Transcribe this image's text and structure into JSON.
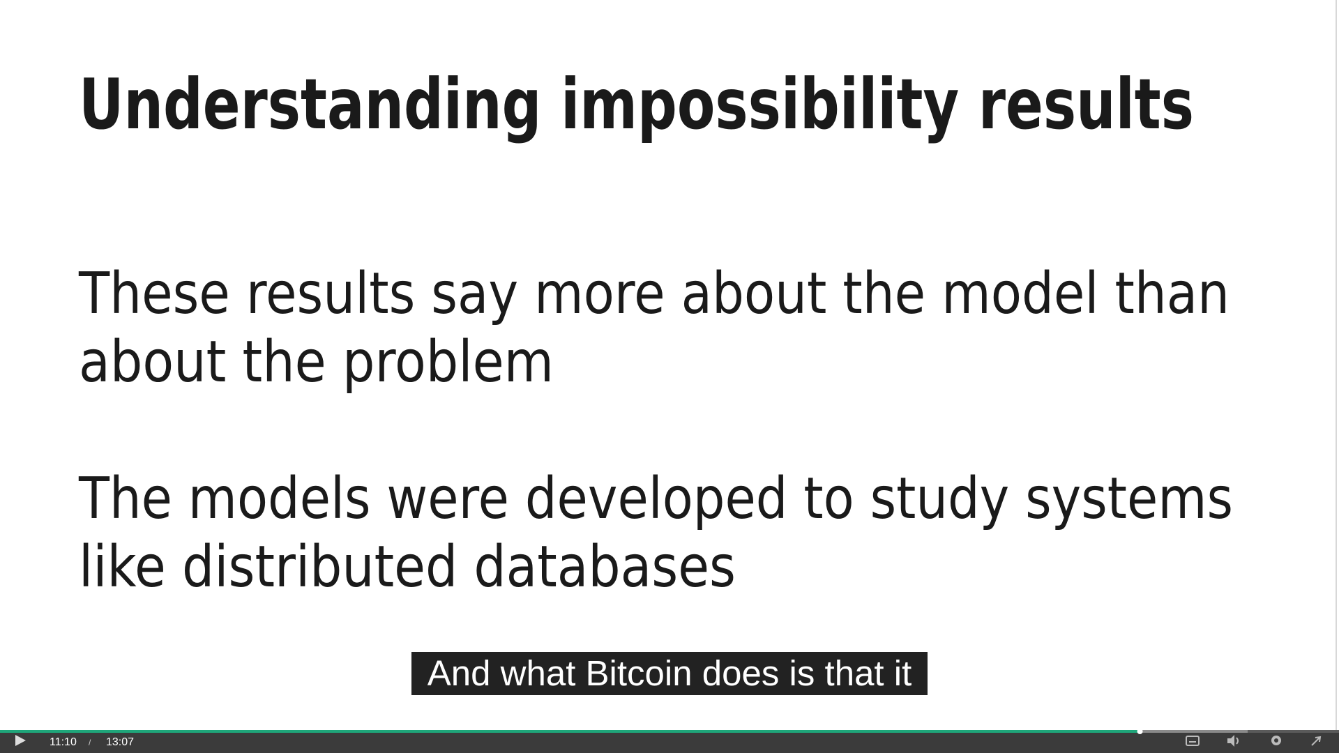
{
  "slide": {
    "title": "Understanding impossibility results",
    "paragraphs": [
      [
        "These results say more about the model than",
        "about the problem"
      ],
      [
        "The models were developed to study systems",
        "like distributed databases"
      ]
    ]
  },
  "subtitle": "And what Bitcoin does is that it",
  "player": {
    "current_time": "11:10",
    "separator": "/",
    "duration": "13:07"
  }
}
